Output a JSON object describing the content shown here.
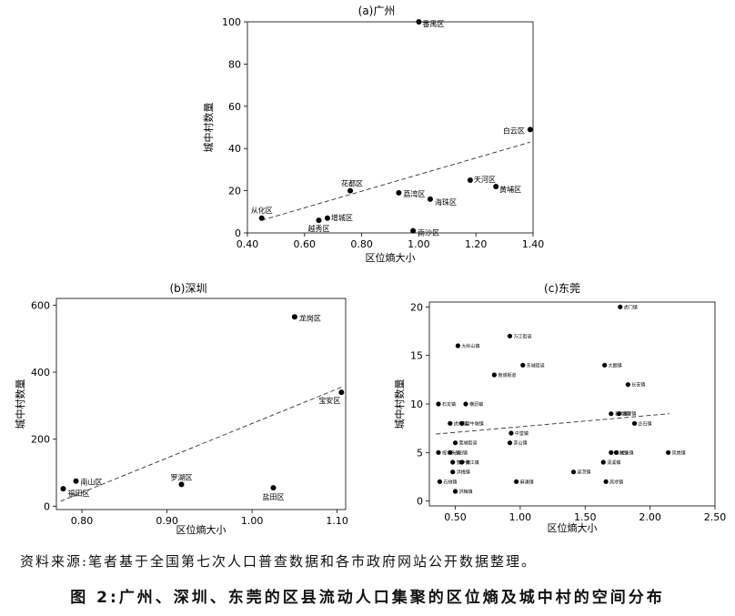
{
  "source_note": "资料来源:笔者基于全国第七次人口普查数据和各市政府网站公开数据整理。",
  "figure_caption": "图 2:广州、深圳、东莞的区县流动人口集聚的区位熵及城中村的空间分布",
  "chart_data": [
    {
      "type": "scatter",
      "title": "(a)广州",
      "xlabel": "区位熵大小",
      "ylabel": "城中村数量",
      "xlim": [
        0.4,
        1.4
      ],
      "ylim": [
        0,
        100
      ],
      "xticks": [
        0.4,
        0.6,
        0.8,
        1.0,
        1.2,
        1.4
      ],
      "xtick_labels": [
        "0.40",
        "0.60",
        "0.80",
        "1.00",
        "1.20",
        "1.40"
      ],
      "yticks": [
        0,
        20,
        40,
        60,
        80,
        100
      ],
      "ytick_labels": [
        "0",
        "20",
        "40",
        "60",
        "80",
        "100"
      ],
      "trend_line": {
        "style": "dashed",
        "x": [
          0.45,
          1.39
        ],
        "y": [
          6,
          43
        ]
      },
      "points": [
        {
          "label": "番禺区",
          "x": 1.0,
          "y": 100
        },
        {
          "label": "白云区",
          "x": 1.39,
          "y": 49
        },
        {
          "label": "天河区",
          "x": 1.18,
          "y": 25
        },
        {
          "label": "黄埔区",
          "x": 1.27,
          "y": 22
        },
        {
          "label": "花都区",
          "x": 0.76,
          "y": 20
        },
        {
          "label": "荔湾区",
          "x": 0.93,
          "y": 19
        },
        {
          "label": "海珠区",
          "x": 1.04,
          "y": 16
        },
        {
          "label": "从化区",
          "x": 0.45,
          "y": 7
        },
        {
          "label": "增城区",
          "x": 0.68,
          "y": 7
        },
        {
          "label": "越秀区",
          "x": 0.65,
          "y": 6
        },
        {
          "label": "南沙区",
          "x": 0.98,
          "y": 1
        }
      ]
    },
    {
      "type": "scatter",
      "title": "(b)深圳",
      "xlabel": "区位熵大小",
      "ylabel": "城中村数量",
      "xlim": [
        0.77,
        1.11
      ],
      "ylim": [
        -10,
        620
      ],
      "xticks": [
        0.8,
        0.9,
        1.0,
        1.1
      ],
      "xtick_labels": [
        "0.80",
        "0.90",
        "1.00",
        "1.10"
      ],
      "yticks": [
        0,
        200,
        400,
        600
      ],
      "ytick_labels": [
        "0",
        "200",
        "400",
        "600"
      ],
      "trend_line": {
        "style": "dashed",
        "x": [
          0.775,
          1.105
        ],
        "y": [
          15,
          355
        ]
      },
      "points": [
        {
          "label": "龙岗区",
          "x": 1.05,
          "y": 565
        },
        {
          "label": "宝安区",
          "x": 1.105,
          "y": 340
        },
        {
          "label": "南山区",
          "x": 0.793,
          "y": 75
        },
        {
          "label": "福田区",
          "x": 0.778,
          "y": 52
        },
        {
          "label": "罗湖区",
          "x": 0.917,
          "y": 65
        },
        {
          "label": "盐田区",
          "x": 1.025,
          "y": 55
        }
      ]
    },
    {
      "type": "scatter",
      "title": "(c)东莞",
      "xlabel": "区位熵大小",
      "ylabel": "城中村数量",
      "xlim": [
        0.3,
        2.5
      ],
      "ylim": [
        -0.5,
        20.5
      ],
      "xticks": [
        0.5,
        1.0,
        1.5,
        2.0,
        2.5
      ],
      "xtick_labels": [
        "0.50",
        "1.00",
        "1.50",
        "2.00",
        "2.50"
      ],
      "yticks": [
        0,
        5,
        10,
        15,
        20
      ],
      "ytick_labels": [
        "0",
        "5",
        "10",
        "15",
        "20"
      ],
      "trend_line": {
        "style": "dashed",
        "x": [
          0.35,
          2.15
        ],
        "y": [
          6.9,
          9.0
        ]
      },
      "points": [
        {
          "label": "虎门镇",
          "x": 1.77,
          "y": 20
        },
        {
          "label": "万江街道",
          "x": 0.92,
          "y": 17
        },
        {
          "label": "大岭山镇",
          "x": 0.52,
          "y": 16
        },
        {
          "label": "东城街道",
          "x": 1.02,
          "y": 14
        },
        {
          "label": "大朗镇",
          "x": 1.65,
          "y": 14
        },
        {
          "label": "南城街道",
          "x": 0.8,
          "y": 13
        },
        {
          "label": "长安镇",
          "x": 1.83,
          "y": 12
        },
        {
          "label": "石龙镇",
          "x": 0.37,
          "y": 10
        },
        {
          "label": "横沥镇",
          "x": 0.58,
          "y": 10
        },
        {
          "label": "石碣镇",
          "x": 1.7,
          "y": 9
        },
        {
          "label": "塘厦镇",
          "x": 1.76,
          "y": 9
        },
        {
          "label": "虎门镇",
          "x": 0.46,
          "y": 8
        },
        {
          "label": "望牛墩镇",
          "x": 0.55,
          "y": 8
        },
        {
          "label": "企石镇",
          "x": 1.88,
          "y": 8
        },
        {
          "label": "中堂镇",
          "x": 0.93,
          "y": 7
        },
        {
          "label": "茶山镇",
          "x": 0.92,
          "y": 6
        },
        {
          "label": "莞城街道",
          "x": 0.5,
          "y": 6
        },
        {
          "label": "樟木头镇",
          "x": 0.37,
          "y": 5
        },
        {
          "label": "沙田镇",
          "x": 0.46,
          "y": 5
        },
        {
          "label": "东坑镇",
          "x": 1.7,
          "y": 5
        },
        {
          "label": "桥头镇",
          "x": 1.74,
          "y": 5
        },
        {
          "label": "凤岗镇",
          "x": 2.14,
          "y": 5
        },
        {
          "label": "寮步镇",
          "x": 0.48,
          "y": 4
        },
        {
          "label": "黄江镇",
          "x": 0.55,
          "y": 4
        },
        {
          "label": "清溪镇",
          "x": 1.64,
          "y": 4
        },
        {
          "label": "洪梅镇",
          "x": 0.48,
          "y": 3
        },
        {
          "label": "道滘镇",
          "x": 1.41,
          "y": 3
        },
        {
          "label": "石排镇",
          "x": 0.38,
          "y": 2
        },
        {
          "label": "麻涌镇",
          "x": 0.97,
          "y": 2
        },
        {
          "label": "高埗镇",
          "x": 1.66,
          "y": 2
        },
        {
          "label": "洪梅镇",
          "x": 0.5,
          "y": 1
        }
      ]
    }
  ]
}
